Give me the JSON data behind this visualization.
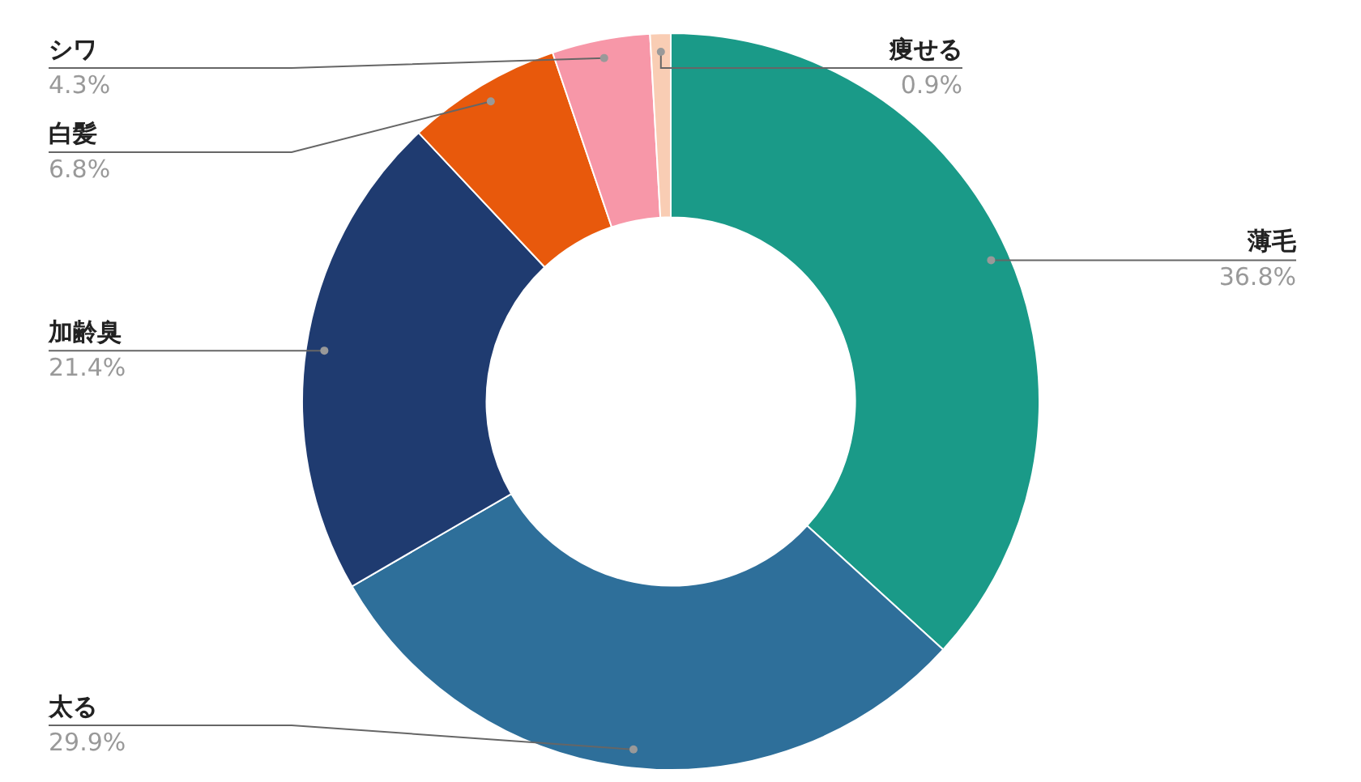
{
  "chart_data": {
    "type": "donut",
    "categories": [
      "薄毛",
      "太る",
      "加齢臭",
      "白髪",
      "シワ",
      "痩せる"
    ],
    "values": [
      36.8,
      29.9,
      21.4,
      6.8,
      4.3,
      0.9
    ],
    "value_labels": [
      "36.8%",
      "29.9%",
      "21.4%",
      "6.8%",
      "4.3%",
      "0.9%"
    ],
    "colors": [
      "#1a9a88",
      "#2e6f9a",
      "#1f3b70",
      "#e8590c",
      "#f797a8",
      "#f9cdb4"
    ]
  }
}
